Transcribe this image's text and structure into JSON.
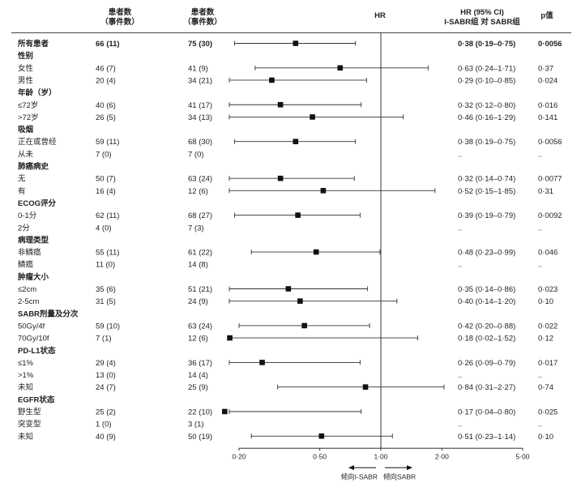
{
  "chart_data": {
    "type": "forest",
    "headers": {
      "col1": [
        "患者数",
        "（事件数）"
      ],
      "col2": [
        "患者数",
        "（事件数）"
      ],
      "hr": "HR",
      "ci": [
        "HR (95% CI)",
        "I-SABR组 对 SABR组"
      ],
      "p": "p值"
    },
    "x_scale": "log",
    "xlim": [
      0.2,
      5.0
    ],
    "x_ticks": [
      {
        "value": 0.2,
        "label": "0·20"
      },
      {
        "value": 0.5,
        "label": "0·50"
      },
      {
        "value": 1.0,
        "label": "1·00"
      },
      {
        "value": 2.0,
        "label": "2·00"
      },
      {
        "value": 5.0,
        "label": "5·00"
      }
    ],
    "reference_line": 1.0,
    "favors_left": "倾向I-SABR",
    "favors_right": "倾向SABR",
    "rows": [
      {
        "label": "所有患者",
        "bold": true,
        "n1": "66 (11)",
        "n2": "75 (30)",
        "hr": 0.38,
        "lo": 0.19,
        "hi": 0.75,
        "ci_text": "0·38 (0·19–0·75)",
        "p": "0·0056"
      },
      {
        "label": "性别",
        "bold": true,
        "group": true
      },
      {
        "label": "女性",
        "n1": "46 (7)",
        "n2": "41 (9)",
        "hr": 0.63,
        "lo": 0.24,
        "hi": 1.71,
        "ci_text": "0·63 (0·24–1·71)",
        "p": "0·37"
      },
      {
        "label": "男性",
        "n1": "20 (4)",
        "n2": "34 (21)",
        "hr": 0.29,
        "lo": 0.1,
        "hi": 0.85,
        "ci_text": "0·29 (0·10–0·85)",
        "p": "0·024"
      },
      {
        "label": "年龄（岁）",
        "bold": true,
        "group": true
      },
      {
        "label": "≤72岁",
        "n1": "40 (6)",
        "n2": "41 (17)",
        "hr": 0.32,
        "lo": 0.12,
        "hi": 0.8,
        "ci_text": "0·32 (0·12–0·80)",
        "p": "0·016"
      },
      {
        "label": ">72岁",
        "n1": "26 (5)",
        "n2": "34 (13)",
        "hr": 0.46,
        "lo": 0.16,
        "hi": 1.29,
        "ci_text": "0·46 (0·16–1·29)",
        "p": "0·141"
      },
      {
        "label": "吸烟",
        "bold": true,
        "group": true
      },
      {
        "label": "正在或曾经",
        "n1": "59 (11)",
        "n2": "68 (30)",
        "hr": 0.38,
        "lo": 0.19,
        "hi": 0.75,
        "ci_text": "0·38 (0·19–0·75)",
        "p": "0·0056"
      },
      {
        "label": "从未",
        "n1": "7 (0)",
        "n2": "7 (0)",
        "ci_text": "..",
        "p": ".."
      },
      {
        "label": "肺癌病史",
        "bold": true,
        "group": true
      },
      {
        "label": "无",
        "n1": "50 (7)",
        "n2": "63 (24)",
        "hr": 0.32,
        "lo": 0.14,
        "hi": 0.74,
        "ci_text": "0·32 (0·14–0·74)",
        "p": "0·0077"
      },
      {
        "label": "有",
        "n1": "16 (4)",
        "n2": "12 (6)",
        "hr": 0.52,
        "lo": 0.15,
        "hi": 1.85,
        "ci_text": "0·52 (0·15–1·85)",
        "p": "0·31"
      },
      {
        "label": "ECOG评分",
        "bold": true,
        "group": true
      },
      {
        "label": "0-1分",
        "n1": "62 (11)",
        "n2": "68 (27)",
        "hr": 0.39,
        "lo": 0.19,
        "hi": 0.79,
        "ci_text": "0·39 (0·19–0·79)",
        "p": "0·0092"
      },
      {
        "label": "2分",
        "n1": "4 (0)",
        "n2": "7 (3)",
        "ci_text": "..",
        "p": ".."
      },
      {
        "label": "病理类型",
        "bold": true,
        "group": true
      },
      {
        "label": "非鳞癌",
        "n1": "55 (11)",
        "n2": "61 (22)",
        "hr": 0.48,
        "lo": 0.23,
        "hi": 0.99,
        "ci_text": "0·48 (0·23–0·99)",
        "p": "0·046"
      },
      {
        "label": "鳞癌",
        "n1": "11 (0)",
        "n2": "14 (8)",
        "ci_text": "..",
        "p": ".."
      },
      {
        "label": "肿瘤大小",
        "bold": true,
        "group": true
      },
      {
        "label": "≤2cm",
        "n1": "35 (6)",
        "n2": "51 (21)",
        "hr": 0.35,
        "lo": 0.14,
        "hi": 0.86,
        "ci_text": "0·35 (0·14–0·86)",
        "p": "0·023"
      },
      {
        "label": "2-5cm",
        "n1": "31 (5)",
        "n2": "24 (9)",
        "hr": 0.4,
        "lo": 0.14,
        "hi": 1.2,
        "ci_text": "0·40 (0·14–1·20)",
        "p": "0·10"
      },
      {
        "label": "SABR剂量及分次",
        "bold": true,
        "group": true
      },
      {
        "label": "50Gy/4f",
        "n1": "59 (10)",
        "n2": "63 (24)",
        "hr": 0.42,
        "lo": 0.2,
        "hi": 0.88,
        "ci_text": "0·42 (0·20–0·88)",
        "p": "0·022"
      },
      {
        "label": "70Gy/10f",
        "n1": "7 (1)",
        "n2": "12 (6)",
        "hr": 0.18,
        "lo": 0.02,
        "hi": 1.52,
        "ci_text": "0·18 (0·02–1·52)",
        "p": "0·12"
      },
      {
        "label": "PD-L1状态",
        "bold": true,
        "group": true
      },
      {
        "label": "≤1%",
        "n1": "29 (4)",
        "n2": "36 (17)",
        "hr": 0.26,
        "lo": 0.09,
        "hi": 0.79,
        "ci_text": "0·26 (0·09–0·79)",
        "p": "0·017"
      },
      {
        "label": ">1%",
        "n1": "13 (0)",
        "n2": "14 (4)",
        "ci_text": "..",
        "p": ".."
      },
      {
        "label": "未知",
        "n1": "24 (7)",
        "n2": "25 (9)",
        "hr": 0.84,
        "lo": 0.31,
        "hi": 2.27,
        "ci_text": "0·84 (0·31–2·27)",
        "p": "0·74"
      },
      {
        "label": "EGFR状态",
        "bold": true,
        "group": true
      },
      {
        "label": "野生型",
        "n1": "25 (2)",
        "n2": "22 (10)",
        "hr": 0.17,
        "lo": 0.04,
        "hi": 0.8,
        "ci_text": "0·17 (0·04–0·80)",
        "p": "0·025"
      },
      {
        "label": "突变型",
        "n1": "1 (0)",
        "n2": "3 (1)",
        "ci_text": "..",
        "p": ".."
      },
      {
        "label": "未知",
        "n1": "40 (9)",
        "n2": "50 (19)",
        "hr": 0.51,
        "lo": 0.23,
        "hi": 1.14,
        "ci_text": "0·51 (0·23–1·14)",
        "p": "0·10"
      }
    ]
  }
}
